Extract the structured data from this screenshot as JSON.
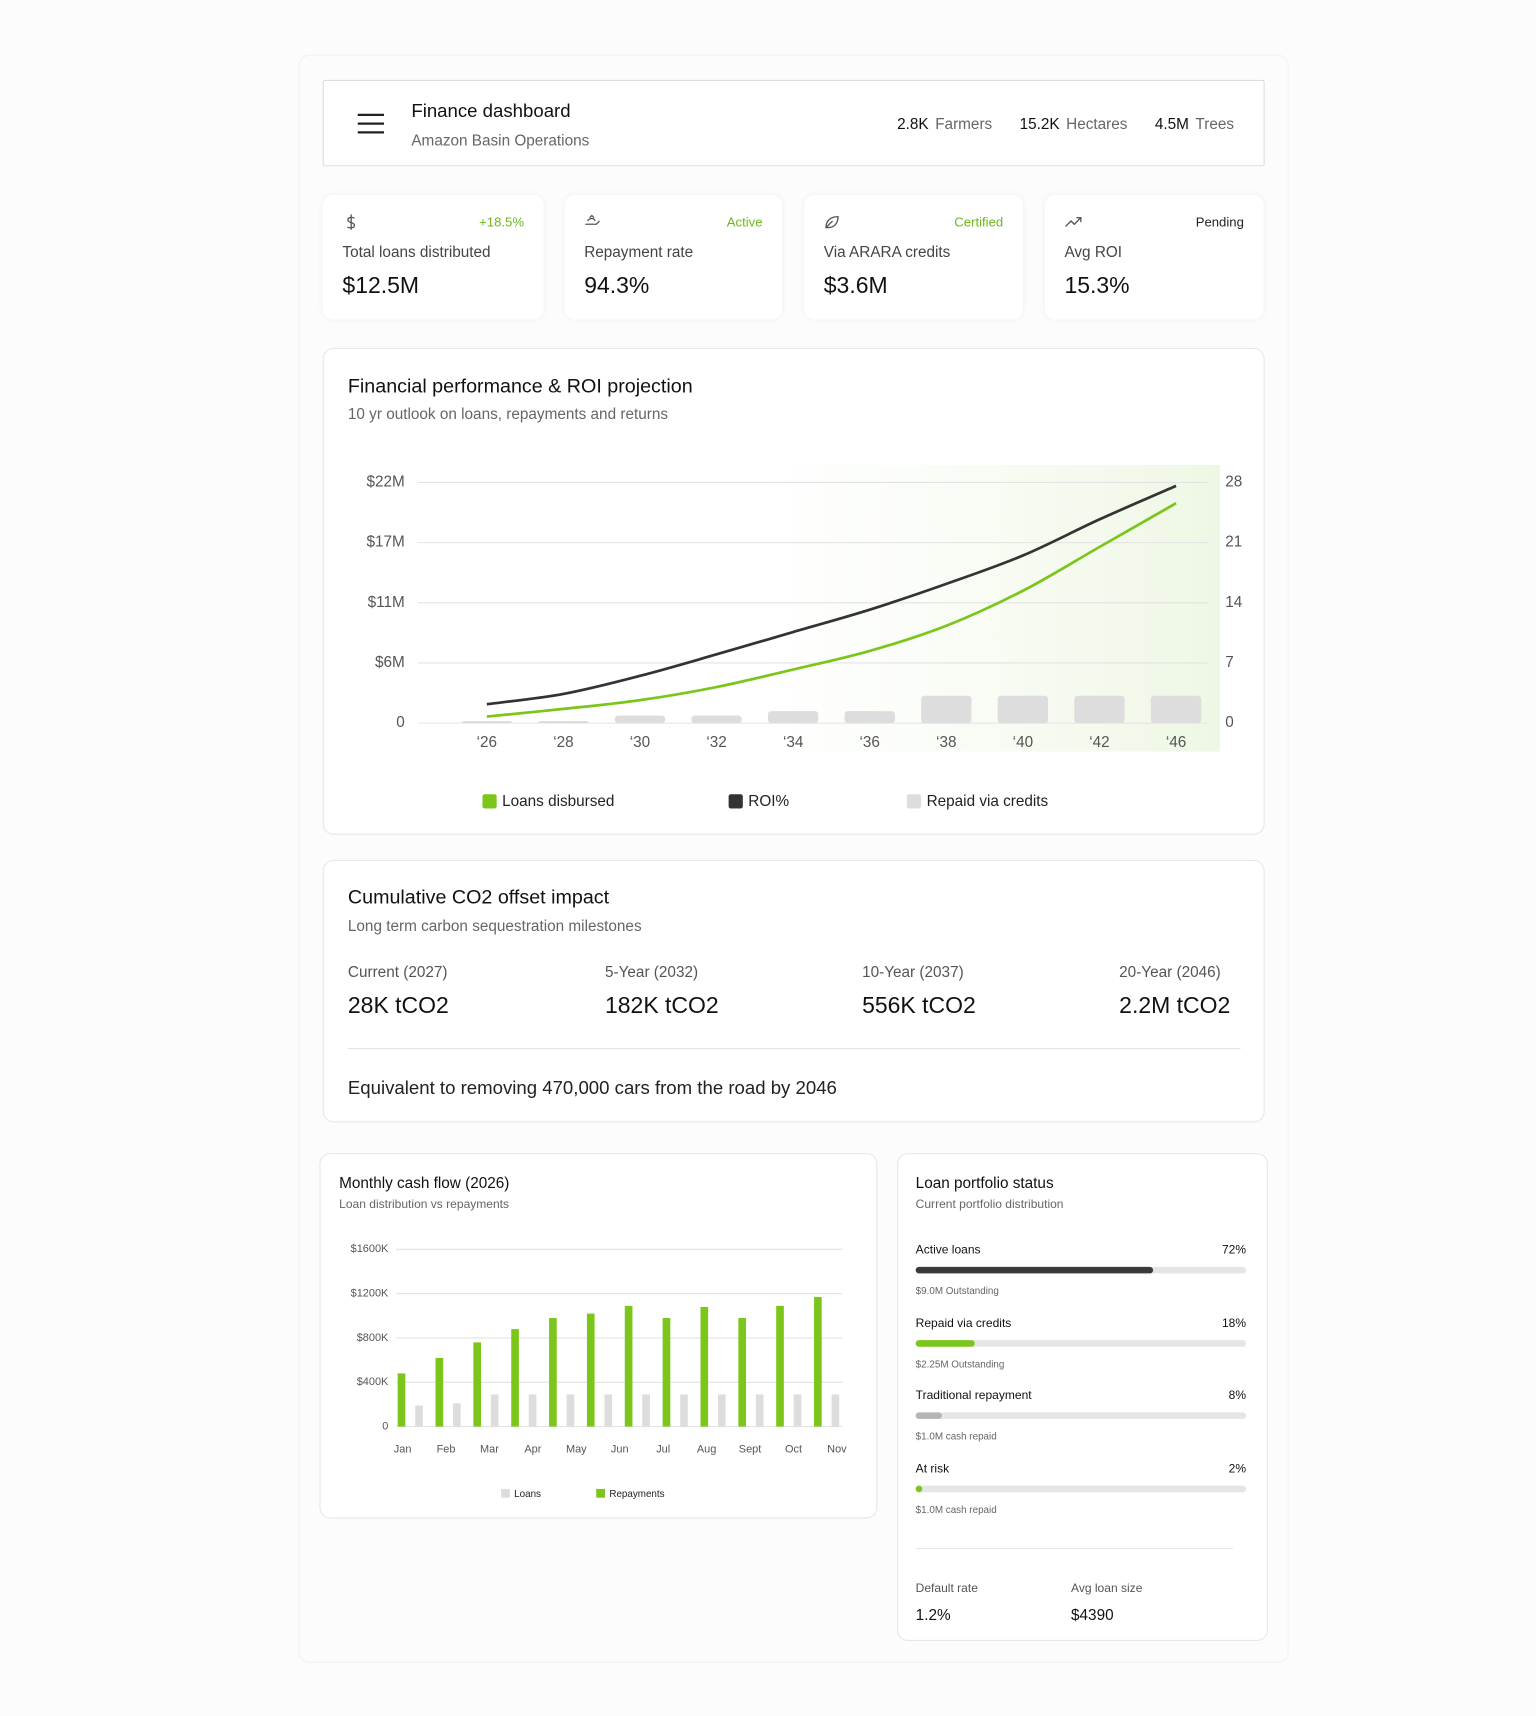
{
  "header": {
    "title": "Finance dashboard",
    "subtitle": "Amazon Basin Operations",
    "stats": [
      {
        "value": "2.8K",
        "label": "Farmers"
      },
      {
        "value": "15.2K",
        "label": "Hectares"
      },
      {
        "value": "4.5M",
        "label": "Trees"
      }
    ]
  },
  "kpis": [
    {
      "badge": "+18.5%",
      "badge_color": "#6cb81a",
      "label": "Total loans distributed",
      "value": "$12.5M"
    },
    {
      "badge": "Active",
      "badge_color": "#6cb81a",
      "label": "Repayment rate",
      "value": "94.3%"
    },
    {
      "badge": "Certified",
      "badge_color": "#6cb81a",
      "label": "Via ARARA credits",
      "value": "$3.6M"
    },
    {
      "badge": "Pending",
      "badge_color": "#222222",
      "label": "Avg ROI",
      "value": "15.3%"
    }
  ],
  "chart_data": [
    {
      "type": "line",
      "title": "Financial performance & ROI projection",
      "subtitle": "10 yr outlook on loans, repayments and returns",
      "categories": [
        "‘26",
        "‘28",
        "‘30",
        "‘32",
        "‘34",
        "‘36",
        "‘38",
        "‘40",
        "‘42",
        "‘46"
      ],
      "series": [
        {
          "name": "Loans disbursed",
          "type": "line",
          "color": "#7cc51b",
          "values": [
            0.6,
            1.3,
            2.1,
            3.3,
            4.9,
            6.6,
            8.9,
            12.1,
            16.1,
            20.1
          ]
        },
        {
          "name": "ROI%",
          "type": "line",
          "axis": "y2",
          "color": "#333333",
          "values": [
            2.2,
            3.4,
            5.5,
            8.0,
            10.6,
            13.2,
            16.2,
            19.5,
            23.7,
            27.6
          ]
        },
        {
          "name": "Repaid via credits",
          "type": "bar",
          "color": "#dddddd",
          "values": [
            0.2,
            0.2,
            0.7,
            0.7,
            1.1,
            1.1,
            2.5,
            2.5,
            2.5,
            2.5
          ]
        }
      ],
      "ylim": [
        0,
        22
      ],
      "yticks": [
        0,
        {
          "value": 5.5,
          "label": "$6M"
        },
        {
          "value": 11,
          "label": "$11M"
        },
        {
          "value": 16.5,
          "label": "$17M"
        },
        {
          "value": 22,
          "label": "$22M"
        }
      ],
      "y2lim": [
        0,
        28
      ],
      "y2ticks": [
        0,
        7,
        14,
        21,
        28
      ],
      "grid": true
    },
    {
      "type": "bar",
      "title": "Monthly cash flow (2026)",
      "subtitle": "Loan distribution vs repayments",
      "categories": [
        "Jan",
        "Feb",
        "Mar",
        "Apr",
        "May",
        "Jun",
        "Jul",
        "Aug",
        "Sept",
        "Oct",
        "Nov",
        null
      ],
      "series": [
        {
          "name": "Loans",
          "color": "#dddddd",
          "values": [
            190,
            210,
            290,
            290,
            290,
            290,
            290,
            290,
            290,
            290,
            290,
            290
          ]
        },
        {
          "name": "Repayments",
          "color": "#7cc51b",
          "values": [
            480,
            620,
            760,
            880,
            980,
            1020,
            1090,
            980,
            1080,
            980,
            1090,
            1170
          ]
        }
      ],
      "ylim": [
        0,
        1600
      ],
      "yticks": [
        0,
        {
          "value": 400,
          "label": "$400K"
        },
        {
          "value": 800,
          "label": "$800K"
        },
        {
          "value": 1200,
          "label": "$1200K"
        },
        {
          "value": 1600,
          "label": "$1600K"
        }
      ],
      "grid": true
    }
  ],
  "co2": {
    "title": "Cumulative CO2 offset impact",
    "subtitle": "Long term carbon sequestration milestones",
    "milestones": [
      {
        "label": "Current (2027)",
        "value": "28K tCO2"
      },
      {
        "label": "5-Year (2032)",
        "value": "182K tCO2"
      },
      {
        "label": "10-Year (2037)",
        "value": "556K tCO2"
      },
      {
        "label": "20-Year (2046)",
        "value": "2.2M tCO2"
      }
    ],
    "note": "Equivalent to removing 470,000 cars from the road by 2046"
  },
  "portfolio": {
    "title": "Loan portfolio status",
    "subtitle": "Current portfolio distribution",
    "items": [
      {
        "label": "Active loans",
        "value": 72,
        "value_label": "72%",
        "note": "$9.0M Outstanding",
        "color": "#3a3a3a"
      },
      {
        "label": "Repaid via credits",
        "value": 18,
        "value_label": "18%",
        "note": "$2.25M Outstanding",
        "color": "#7cc51b"
      },
      {
        "label": "Traditional repayment",
        "value": 8,
        "value_label": "8%",
        "note": "$1.0M cash repaid",
        "color": "#b5b5b5"
      },
      {
        "label": "At risk",
        "value": 2,
        "value_label": "2%",
        "note": "$1.0M cash repaid",
        "color": "#7cc51b"
      }
    ],
    "stats": [
      {
        "label": "Default rate",
        "value": "1.2%"
      },
      {
        "label": "Avg loan size",
        "value": "$4390"
      }
    ]
  }
}
